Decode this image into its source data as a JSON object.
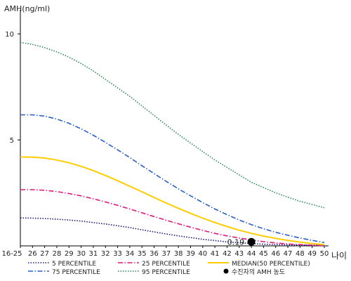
{
  "chart_data": {
    "type": "line",
    "ylabel": "AMH(ng/ml)",
    "xlabel": "나이",
    "ylim": [
      0,
      11
    ],
    "yticks": [
      5,
      10
    ],
    "grid": false,
    "legend_position": "bottom",
    "x": [
      "16-25",
      "26",
      "27",
      "28",
      "29",
      "30",
      "31",
      "32",
      "33",
      "34",
      "35",
      "36",
      "37",
      "38",
      "39",
      "40",
      "41",
      "42",
      "43",
      "44",
      "45",
      "46",
      "47",
      "48",
      "49",
      "50"
    ],
    "series": [
      {
        "name": "5 PERCENTILE",
        "color": "#1a1a7a",
        "dash": "dotted",
        "values": [
          1.32,
          1.31,
          1.29,
          1.26,
          1.22,
          1.17,
          1.1,
          1.03,
          0.95,
          0.86,
          0.76,
          0.66,
          0.56,
          0.47,
          0.39,
          0.31,
          0.25,
          0.19,
          0.15,
          0.11,
          0.08,
          0.06,
          0.05,
          0.04,
          0.03,
          0.02
        ]
      },
      {
        "name": "25 PERCENTILE",
        "color": "#e0177e",
        "dash": "dashdot",
        "values": [
          2.65,
          2.65,
          2.62,
          2.56,
          2.47,
          2.36,
          2.22,
          2.07,
          1.91,
          1.74,
          1.56,
          1.38,
          1.21,
          1.04,
          0.88,
          0.73,
          0.59,
          0.47,
          0.37,
          0.28,
          0.2,
          0.14,
          0.09,
          0.06,
          0.03,
          0.01
        ]
      },
      {
        "name": "75 PERCENTILE",
        "color": "#2a5fc8",
        "dash": "dashdot",
        "values": [
          6.18,
          6.18,
          6.12,
          5.98,
          5.78,
          5.52,
          5.22,
          4.88,
          4.53,
          4.16,
          3.78,
          3.41,
          3.04,
          2.69,
          2.36,
          2.04,
          1.74,
          1.47,
          1.22,
          1.0,
          0.81,
          0.64,
          0.5,
          0.37,
          0.26,
          0.16
        ]
      },
      {
        "name": "MEDIAN(50 PERCENTILE)",
        "color": "#ffcc00",
        "dash": "solid",
        "values": [
          4.19,
          4.18,
          4.14,
          4.05,
          3.92,
          3.75,
          3.55,
          3.32,
          3.07,
          2.81,
          2.55,
          2.28,
          2.02,
          1.77,
          1.53,
          1.31,
          1.1,
          0.91,
          0.74,
          0.59,
          0.46,
          0.35,
          0.26,
          0.18,
          0.11,
          0.06
        ]
      },
      {
        "name": "95 PERCENTILE",
        "color": "#2e8b57",
        "dash": "dotted",
        "values": [
          9.6,
          9.5,
          9.35,
          9.15,
          8.9,
          8.6,
          8.25,
          7.85,
          7.45,
          7.05,
          6.6,
          6.15,
          5.7,
          5.25,
          4.85,
          4.45,
          4.05,
          3.7,
          3.35,
          3.0,
          2.75,
          2.5,
          2.3,
          2.1,
          1.95,
          1.8
        ]
      }
    ],
    "patient_marker": {
      "name": "수진자의 AMH 농도",
      "x": "44",
      "y": 0.19,
      "label": "0.19",
      "color": "#000000"
    },
    "legend_order": [
      "5 PERCENTILE",
      "25 PERCENTILE",
      "MEDIAN(50 PERCENTILE)",
      "75 PERCENTILE",
      "95 PERCENTILE",
      "수진자의 AMH 농도"
    ]
  }
}
